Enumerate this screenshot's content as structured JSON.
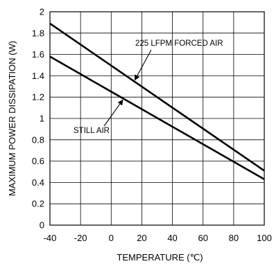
{
  "chart_data": {
    "type": "line",
    "title": "",
    "xlabel": "TEMPERATURE (℃)",
    "ylabel": "MAXIMUM POWER DISSIPATION (W)",
    "xlim": [
      -40,
      100
    ],
    "ylim": [
      0,
      2
    ],
    "grid": true,
    "x_ticks": [
      "-40",
      "-20",
      "0",
      "20",
      "40",
      "60",
      "80",
      "100"
    ],
    "y_ticks": [
      "0",
      "0.2",
      "0.4",
      "0.6",
      "0.8",
      "1",
      "1.2",
      "1.4",
      "1.6",
      "1.8",
      "2"
    ],
    "series": [
      {
        "name": "225 LFPM FORCED AIR",
        "x": [
          -40,
          100
        ],
        "y": [
          1.89,
          0.51
        ]
      },
      {
        "name": "STILL AIR",
        "x": [
          -40,
          100
        ],
        "y": [
          1.58,
          0.43
        ]
      }
    ],
    "annotations": [
      {
        "text": "225 LFPM FORCED AIR",
        "series": "225 LFPM FORCED AIR"
      },
      {
        "text": "STILL AIR",
        "series": "STILL AIR"
      }
    ],
    "colors": {
      "line": "#000000",
      "grid": "#000000"
    }
  }
}
